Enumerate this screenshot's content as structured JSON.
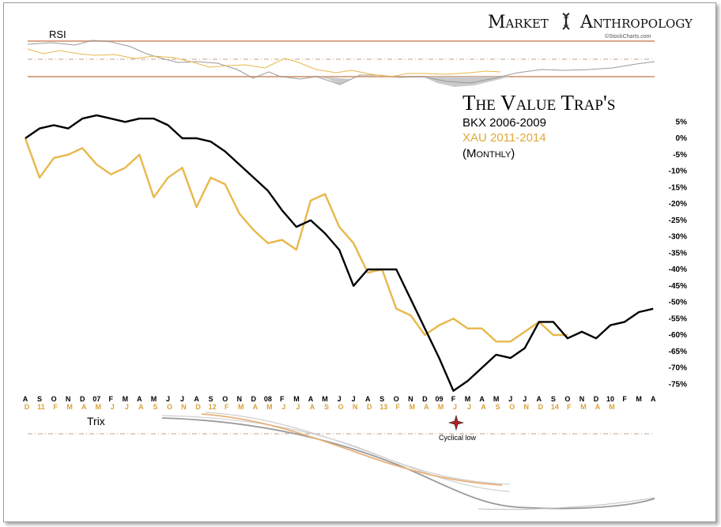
{
  "brand": {
    "left": "Market",
    "right": "Anthropology",
    "credit": "©StockCharts.com"
  },
  "rsi_label": "RSI",
  "trix_label": "Trix",
  "annotation": "Cyclical low",
  "colors": {
    "bkx": "#000000",
    "xau": "#e8b84a",
    "ref": "#d9a88a",
    "gray": "#9a9a9a",
    "lightgray": "#c8c8c8",
    "fill": "#c9c9c9"
  },
  "chart_data": {
    "type": "line",
    "title": "The Value Trap's",
    "subtitle": "(Monthly)",
    "y_axis": {
      "ticks": [
        "5%",
        "0%",
        "-5%",
        "-10%",
        "-15%",
        "-20%",
        "-25%",
        "-30%",
        "-35%",
        "-40%",
        "-45%",
        "-50%",
        "-55%",
        "-60%",
        "-65%",
        "-70%",
        "-75%"
      ],
      "ylim": [
        -77,
        5
      ]
    },
    "x_axis_bkx": [
      "A",
      "S",
      "O",
      "N",
      "D",
      "07",
      "F",
      "M",
      "A",
      "M",
      "J",
      "J",
      "A",
      "S",
      "O",
      "N",
      "D",
      "08",
      "F",
      "M",
      "A",
      "M",
      "J",
      "J",
      "A",
      "S",
      "O",
      "N",
      "D",
      "09",
      "F",
      "M",
      "A",
      "M",
      "J",
      "J",
      "A",
      "S",
      "O",
      "N",
      "D",
      "10",
      "F",
      "M",
      "A"
    ],
    "x_axis_xau": [
      "D",
      "11",
      "F",
      "M",
      "A",
      "M",
      "J",
      "J",
      "A",
      "S",
      "O",
      "N",
      "D",
      "12",
      "F",
      "M",
      "A",
      "M",
      "J",
      "J",
      "A",
      "S",
      "O",
      "N",
      "D",
      "13",
      "F",
      "M",
      "A",
      "M",
      "J",
      "J",
      "A",
      "S",
      "O",
      "N",
      "D",
      "14",
      "F",
      "M",
      "A",
      "M"
    ],
    "series": [
      {
        "name": "BKX 2006-2009",
        "values": [
          0,
          3,
          4,
          3,
          6,
          7,
          6,
          5,
          6,
          6,
          4,
          0,
          0,
          -1,
          -4,
          -8,
          -12,
          -16,
          -22,
          -27,
          -25,
          -29,
          -34,
          -45,
          -40,
          -40,
          -40,
          -49,
          -58,
          -67,
          -77,
          -74,
          -70,
          -66,
          -67,
          -64,
          -56,
          -56,
          -61,
          -59,
          -61,
          -57,
          -56,
          -53,
          -52
        ]
      },
      {
        "name": "XAU 2011-2014",
        "values": [
          0,
          -12,
          -6,
          -5,
          -3,
          -8,
          -11,
          -9,
          -5,
          -18,
          -12,
          -9,
          -21,
          -12,
          -14,
          -23,
          -28,
          -32,
          -31,
          -34,
          -19,
          -17,
          -27,
          -32,
          -41,
          -40,
          -52,
          -54,
          -60,
          -57,
          -55,
          -58,
          -58,
          -62,
          -62,
          -59,
          -56,
          -60,
          -60
        ]
      }
    ]
  }
}
